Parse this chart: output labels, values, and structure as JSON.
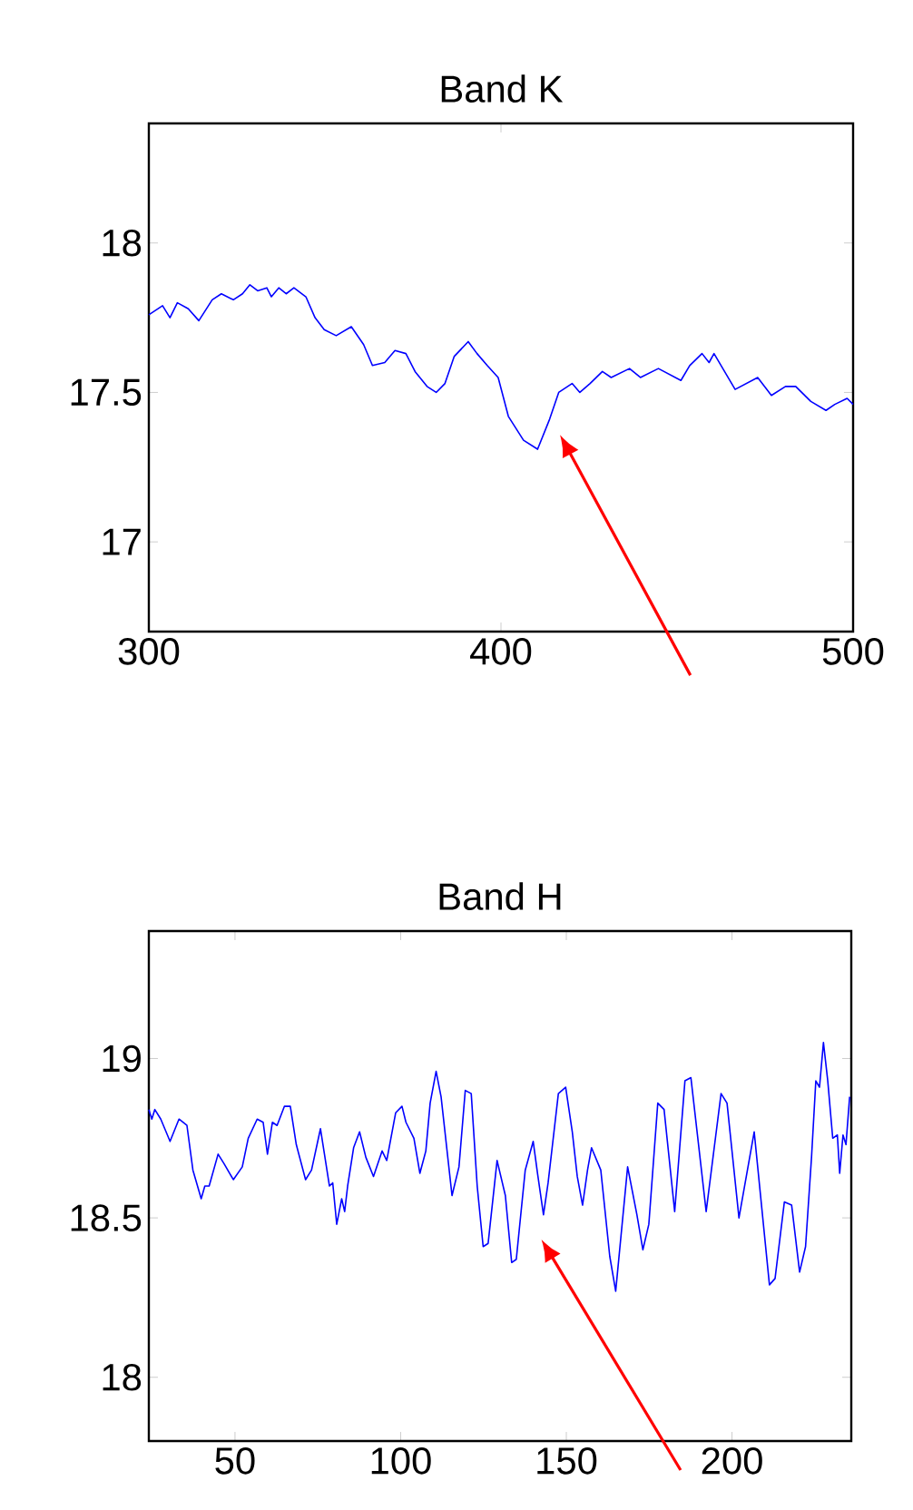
{
  "chart_data": [
    {
      "type": "line",
      "title": "Band K",
      "color": "#0000ff",
      "xlim": [
        300,
        500
      ],
      "ylim": [
        16.7,
        18.4
      ],
      "xticks": [
        300,
        400,
        500
      ],
      "yticks": [
        17,
        17.5,
        18
      ],
      "x": [
        300,
        303.9,
        306,
        308.1,
        311.2,
        314.2,
        318,
        320.6,
        324,
        326.6,
        328.7,
        330.9,
        333.5,
        334.8,
        336.9,
        339,
        341.2,
        344.6,
        347.2,
        349.8,
        353.2,
        357.5,
        361,
        363.5,
        367,
        369.9,
        373,
        375.6,
        379,
        381.6,
        384.1,
        386.7,
        390.7,
        393.2,
        396.1,
        399.2,
        402.1,
        406.4,
        410.4,
        413.8,
        416.4,
        420.2,
        422.4,
        425.3,
        428.8,
        431.3,
        436.5,
        439.6,
        444.7,
        451.1,
        453.6,
        457.1,
        459.1,
        460.5,
        466.5,
        472.9,
        476.8,
        480.8,
        483.7,
        488,
        492.3,
        494.8,
        498.3,
        500
      ],
      "values": [
        17.76,
        17.79,
        17.75,
        17.8,
        17.78,
        17.74,
        17.81,
        17.83,
        17.81,
        17.83,
        17.86,
        17.84,
        17.85,
        17.82,
        17.85,
        17.83,
        17.85,
        17.82,
        17.75,
        17.71,
        17.69,
        17.72,
        17.66,
        17.59,
        17.6,
        17.64,
        17.63,
        17.57,
        17.52,
        17.5,
        17.53,
        17.62,
        17.67,
        17.63,
        17.59,
        17.55,
        17.42,
        17.34,
        17.31,
        17.41,
        17.5,
        17.53,
        17.5,
        17.53,
        17.57,
        17.55,
        17.58,
        17.55,
        17.58,
        17.54,
        17.59,
        17.63,
        17.6,
        17.63,
        17.51,
        17.55,
        17.49,
        17.52,
        17.52,
        17.47,
        17.44,
        17.46,
        17.48,
        17.46
      ]
    },
    {
      "type": "line",
      "title": "Band H",
      "color": "#0000ff",
      "xlim": [
        24,
        236
      ],
      "ylim": [
        17.8,
        19.4
      ],
      "xticks": [
        50,
        100,
        150,
        200
      ],
      "yticks": [
        18,
        18.5,
        19
      ],
      "x": [
        24,
        24.9,
        25.8,
        27.6,
        30.4,
        33.1,
        35.5,
        37.3,
        39.8,
        40.9,
        42.2,
        44.9,
        46.7,
        49.5,
        52.2,
        54,
        56.7,
        58.5,
        59.8,
        61.3,
        62.7,
        64.9,
        66.7,
        68.5,
        71.3,
        73.1,
        75.8,
        78.5,
        79.5,
        80.7,
        82.2,
        83.1,
        84,
        85.8,
        87.6,
        89.5,
        91.8,
        94.4,
        95.8,
        98.5,
        100.4,
        101.6,
        104,
        105.8,
        107.6,
        108.9,
        110.7,
        112.2,
        115.5,
        117.6,
        119.5,
        121.3,
        123.1,
        124.9,
        126.4,
        129.1,
        131.6,
        133.5,
        134.9,
        137.6,
        140,
        141.3,
        143.1,
        144.5,
        147.6,
        149.8,
        151.8,
        153.3,
        154.9,
        156.4,
        157.6,
        160.4,
        163.1,
        164.9,
        168.5,
        171.3,
        173.1,
        174.9,
        177.6,
        179.5,
        182.7,
        185.8,
        187.6,
        192.2,
        196.7,
        198.5,
        202.1,
        206.7,
        211.3,
        213,
        215.8,
        218,
        220.4,
        222.2,
        224,
        225.3,
        226.4,
        227.6,
        228.9,
        230.4,
        231.8,
        232.5,
        233.5,
        234.4,
        235.5
      ],
      "values": [
        18.84,
        18.81,
        18.84,
        18.81,
        18.74,
        18.81,
        18.79,
        18.65,
        18.56,
        18.6,
        18.6,
        18.7,
        18.67,
        18.62,
        18.66,
        18.75,
        18.81,
        18.8,
        18.7,
        18.8,
        18.79,
        18.85,
        18.85,
        18.73,
        18.62,
        18.65,
        18.78,
        18.6,
        18.61,
        18.48,
        18.56,
        18.52,
        18.6,
        18.72,
        18.77,
        18.69,
        18.63,
        18.71,
        18.68,
        18.83,
        18.85,
        18.8,
        18.75,
        18.64,
        18.71,
        18.86,
        18.96,
        18.88,
        18.57,
        18.66,
        18.9,
        18.89,
        18.6,
        18.41,
        18.42,
        18.68,
        18.57,
        18.36,
        18.37,
        18.65,
        18.74,
        18.64,
        18.51,
        18.61,
        18.89,
        18.91,
        18.77,
        18.63,
        18.54,
        18.65,
        18.72,
        18.65,
        18.38,
        18.27,
        18.66,
        18.51,
        18.4,
        18.48,
        18.86,
        18.84,
        18.52,
        18.93,
        18.94,
        18.52,
        18.89,
        18.86,
        18.5,
        18.77,
        18.29,
        18.31,
        18.55,
        18.54,
        18.33,
        18.41,
        18.69,
        18.93,
        18.91,
        19.05,
        18.93,
        18.75,
        18.76,
        18.64,
        18.76,
        18.73,
        18.88
      ]
    }
  ]
}
